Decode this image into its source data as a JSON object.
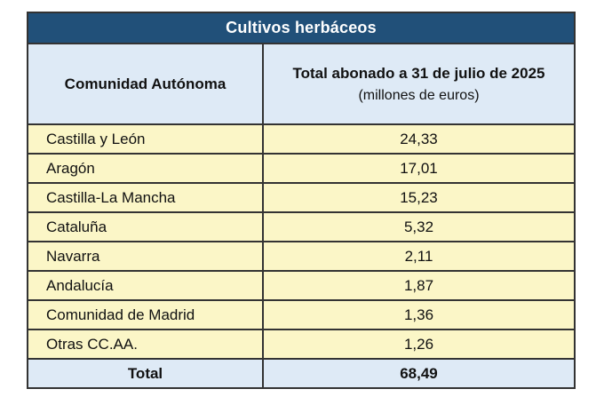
{
  "table": {
    "title": "Cultivos herbáceos",
    "columns": {
      "region_header": "Comunidad Autónoma",
      "value_header": "Total abonado a 31 de julio de 2025",
      "value_header_sub": "(millones de euros)"
    },
    "rows": [
      {
        "region": "Castilla y León",
        "value": "24,33"
      },
      {
        "region": "Aragón",
        "value": "17,01"
      },
      {
        "region": "Castilla-La Mancha",
        "value": "15,23"
      },
      {
        "region": "Cataluña",
        "value": "5,32"
      },
      {
        "region": "Navarra",
        "value": "2,11"
      },
      {
        "region": "Andalucía",
        "value": "1,87"
      },
      {
        "region": "Comunidad de Madrid",
        "value": "1,36"
      },
      {
        "region": "Otras CC.AA.",
        "value": "1,26"
      }
    ],
    "total": {
      "label": "Total",
      "value": "68,49"
    }
  },
  "colors": {
    "title_bg": "#215079",
    "title_text": "#FFFFFF",
    "header_bg": "#DEEAF6",
    "row_bg": "#FBF6C7",
    "total_bg": "#DEEAF6",
    "border": "#333333",
    "page_bg": "#FFFFFF"
  },
  "chart_data": {
    "type": "table",
    "title": "Cultivos herbáceos",
    "columns": [
      "Comunidad Autónoma",
      "Total abonado a 31 de julio de 2025 (millones de euros)"
    ],
    "categories": [
      "Castilla y León",
      "Aragón",
      "Castilla-La Mancha",
      "Cataluña",
      "Navarra",
      "Andalucía",
      "Comunidad de Madrid",
      "Otras CC.AA."
    ],
    "values": [
      24.33,
      17.01,
      15.23,
      5.32,
      2.11,
      1.87,
      1.36,
      1.26
    ],
    "total": 68.49,
    "units": "millones de euros",
    "as_of_date": "31 de julio de 2025"
  }
}
